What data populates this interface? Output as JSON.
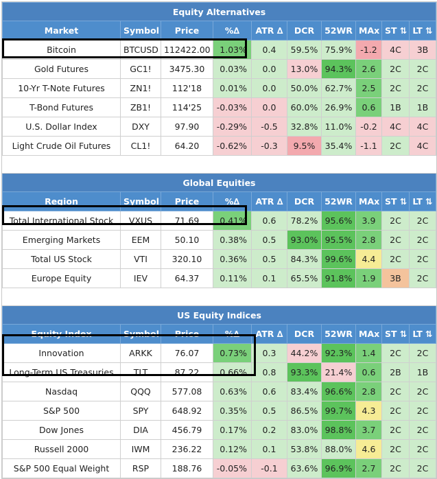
{
  "sections": [
    {
      "title": "Equity Alternatives",
      "headers": [
        "Market",
        "Symbol",
        "Price",
        "%∆",
        "ATR ∆",
        "DCR",
        "52WR",
        "MAx",
        "ST ⇅",
        "LT ⇅"
      ],
      "rows": [
        [
          "Bitcoin",
          "BTCUSD",
          "112422.00",
          "1.03%",
          "0.4",
          "59.5%",
          "75.9%",
          "-1.2",
          "4C",
          "3B"
        ],
        [
          "Gold Futures",
          "GC1!",
          "3475.30",
          "0.03%",
          "0.0",
          "13.0%",
          "94.3%",
          "2.6",
          "2C",
          "2C"
        ],
        [
          "10-Yr T-Note Futures",
          "ZN1!",
          "112'18",
          "0.01%",
          "0.0",
          "50.0%",
          "62.7%",
          "2.5",
          "2C",
          "2C"
        ],
        [
          "T-Bond Futures",
          "ZB1!",
          "114'25",
          "-0.03%",
          "0.0",
          "60.0%",
          "26.9%",
          "0.6",
          "1B",
          "1B"
        ],
        [
          "U.S. Dollar Index",
          "DXY",
          "97.90",
          "-0.29%",
          "-0.5",
          "32.8%",
          "11.0%",
          "-0.2",
          "4C",
          "4C"
        ],
        [
          "Light Crude Oil Futures",
          "CL1!",
          "64.20",
          "-0.62%",
          "-0.3",
          "9.5%",
          "35.4%",
          "-1.1",
          "2C",
          "4C"
        ]
      ]
    },
    {
      "title": "Global Equities",
      "headers": [
        "Region",
        "Symbol",
        "Price",
        "%∆",
        "ATR ∆",
        "DCR",
        "52WR",
        "MAx",
        "ST ⇅",
        "LT ⇅"
      ],
      "rows": [
        [
          "Total International Stock",
          "VXUS",
          "71.69",
          "0.41%",
          "0.6",
          "78.2%",
          "95.6%",
          "3.9",
          "2C",
          "2C"
        ],
        [
          "Emerging Markets",
          "EEM",
          "50.10",
          "0.38%",
          "0.5",
          "93.0%",
          "95.5%",
          "2.8",
          "2C",
          "2C"
        ],
        [
          "Total US Stock",
          "VTI",
          "320.10",
          "0.36%",
          "0.5",
          "84.3%",
          "99.6%",
          "4.4",
          "2C",
          "2C"
        ],
        [
          "Europe Equity",
          "IEV",
          "64.37",
          "0.11%",
          "0.1",
          "65.5%",
          "91.8%",
          "1.9",
          "3B",
          "2C"
        ]
      ]
    },
    {
      "title": "US Equity Indices",
      "headers": [
        "Equity Index",
        "Symbol",
        "Price",
        "%∆",
        "ATR ∆",
        "DCR",
        "52WR",
        "MAx",
        "ST ⇅",
        "LT ⇅"
      ],
      "rows": [
        [
          "Innovation",
          "ARKK",
          "76.07",
          "0.73%",
          "0.3",
          "44.2%",
          "92.3%",
          "1.4",
          "2C",
          "2C"
        ],
        [
          "Long-Term US Treasuries",
          "TLT",
          "87.22",
          "0.66%",
          "0.8",
          "93.3%",
          "21.4%",
          "0.6",
          "2B",
          "1B"
        ],
        [
          "Nasdaq",
          "QQQ",
          "577.08",
          "0.63%",
          "0.6",
          "83.4%",
          "96.6%",
          "2.8",
          "2C",
          "2C"
        ],
        [
          "S&P 500",
          "SPY",
          "648.92",
          "0.35%",
          "0.5",
          "86.5%",
          "99.7%",
          "4.3",
          "2C",
          "2C"
        ],
        [
          "Dow Jones",
          "DIA",
          "456.79",
          "0.17%",
          "0.2",
          "83.0%",
          "98.8%",
          "3.7",
          "2C",
          "2C"
        ],
        [
          "Russell 2000",
          "IWM",
          "236.22",
          "0.12%",
          "0.1",
          "53.8%",
          "88.0%",
          "4.6",
          "2C",
          "2C"
        ],
        [
          "S&P 500 Equal Weight",
          "RSP",
          "188.76",
          "-0.05%",
          "-0.1",
          "63.6%",
          "96.9%",
          "2.7",
          "2C",
          "2C"
        ]
      ]
    }
  ],
  "colors": {
    "header_blue": "#4e8dcc",
    "title_blue": "#4b82bf",
    "green_light": "#cdeccb",
    "green_mid": "#b3e0b0",
    "green_strong": "#7ad07a",
    "green_deep": "#5cc35c",
    "red_light": "#f6cfd2",
    "red_mid": "#f3a9ae",
    "yellow": "#f6ec95",
    "orange": "#f4c39c"
  },
  "cell_colors": [
    [
      [
        "",
        "",
        "",
        "green_strong",
        "green_light",
        "green_light",
        "green_light",
        "red_mid",
        "red_light",
        "red_light"
      ],
      [
        "",
        "",
        "",
        "green_light",
        "green_light",
        "red_light",
        "green_deep",
        "green_strong",
        "green_light",
        "green_light"
      ],
      [
        "",
        "",
        "",
        "green_light",
        "green_light",
        "green_light",
        "green_light",
        "green_strong",
        "green_light",
        "green_light"
      ],
      [
        "",
        "",
        "",
        "red_light",
        "red_light",
        "green_light",
        "green_light",
        "green_strong",
        "green_light",
        "green_light"
      ],
      [
        "",
        "",
        "",
        "red_light",
        "red_light",
        "green_light",
        "green_light",
        "red_light",
        "red_light",
        "red_light"
      ],
      [
        "",
        "",
        "",
        "red_light",
        "red_light",
        "red_mid",
        "green_light",
        "red_light",
        "green_light",
        "red_light"
      ]
    ],
    [
      [
        "",
        "",
        "",
        "green_strong",
        "green_light",
        "green_light",
        "green_deep",
        "green_strong",
        "green_light",
        "green_light"
      ],
      [
        "",
        "",
        "",
        "green_light",
        "green_light",
        "green_deep",
        "green_deep",
        "green_strong",
        "green_light",
        "green_light"
      ],
      [
        "",
        "",
        "",
        "green_light",
        "green_light",
        "green_light",
        "green_deep",
        "yellow",
        "green_light",
        "green_light"
      ],
      [
        "",
        "",
        "",
        "green_light",
        "green_light",
        "green_light",
        "green_deep",
        "green_strong",
        "orange",
        "green_light"
      ]
    ],
    [
      [
        "",
        "",
        "",
        "green_strong",
        "green_light",
        "red_light",
        "green_deep",
        "green_strong",
        "green_light",
        "green_light"
      ],
      [
        "",
        "",
        "",
        "green_light",
        "green_light",
        "green_deep",
        "red_light",
        "green_strong",
        "green_light",
        "green_light"
      ],
      [
        "",
        "",
        "",
        "green_light",
        "green_light",
        "green_light",
        "green_deep",
        "green_strong",
        "green_light",
        "green_light"
      ],
      [
        "",
        "",
        "",
        "green_light",
        "green_light",
        "green_light",
        "green_deep",
        "yellow",
        "green_light",
        "green_light"
      ],
      [
        "",
        "",
        "",
        "green_light",
        "green_light",
        "green_light",
        "green_deep",
        "green_strong",
        "green_light",
        "green_light"
      ],
      [
        "",
        "",
        "",
        "green_light",
        "green_light",
        "green_light",
        "green_light",
        "yellow",
        "green_light",
        "green_light"
      ],
      [
        "",
        "",
        "",
        "red_light",
        "red_light",
        "green_light",
        "green_deep",
        "green_strong",
        "green_light",
        "green_light"
      ]
    ]
  ]
}
